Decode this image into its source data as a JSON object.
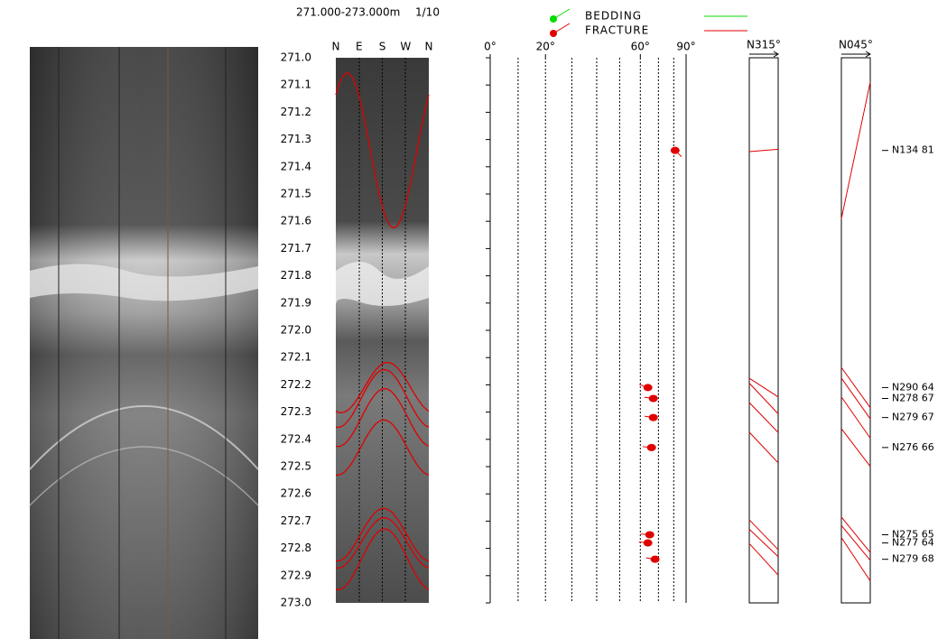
{
  "header": {
    "range": "271.000-273.000m",
    "scale": "1/10"
  },
  "legend": [
    {
      "label": "BEDDING",
      "color": "#00dd00"
    },
    {
      "label": "FRACTURE",
      "color": "#e00000"
    }
  ],
  "compass": [
    "N",
    "E",
    "S",
    "W",
    "N"
  ],
  "depth_axis": {
    "lim": [
      271.0,
      273.0
    ],
    "ticks": [
      {
        "value": 271.0,
        "label": "271.0"
      },
      {
        "value": 271.1,
        "label": "271.1"
      },
      {
        "value": 271.2,
        "label": "271.2"
      },
      {
        "value": 271.3,
        "label": "271.3"
      },
      {
        "value": 271.4,
        "label": "271.4"
      },
      {
        "value": 271.5,
        "label": "271.5"
      },
      {
        "value": 271.6,
        "label": "271.6"
      },
      {
        "value": 271.7,
        "label": "271.7"
      },
      {
        "value": 271.8,
        "label": "271.8"
      },
      {
        "value": 271.9,
        "label": "271.9"
      },
      {
        "value": 272.0,
        "label": "272.0"
      },
      {
        "value": 272.1,
        "label": "272.1"
      },
      {
        "value": 272.2,
        "label": "272.2"
      },
      {
        "value": 272.3,
        "label": "272.3"
      },
      {
        "value": 272.4,
        "label": "272.4"
      },
      {
        "value": 272.5,
        "label": "272.5"
      },
      {
        "value": 272.6,
        "label": "272.6"
      },
      {
        "value": 272.7,
        "label": "272.7"
      },
      {
        "value": 272.8,
        "label": "272.8"
      },
      {
        "value": 272.9,
        "label": "272.9"
      },
      {
        "value": 273.0,
        "label": "273.0"
      }
    ]
  },
  "dip_axis": {
    "lim": [
      0,
      90
    ],
    "ticks": [
      {
        "value": 0,
        "label": "0°"
      },
      {
        "value": 20,
        "label": "20°"
      },
      {
        "value": 60,
        "label": "60°"
      },
      {
        "value": 90,
        "label": "90°"
      }
    ],
    "grid": [
      10,
      20,
      30,
      40,
      50,
      60,
      70,
      80
    ]
  },
  "projections": [
    {
      "label": "N315°",
      "azimuth": 315
    },
    {
      "label": "N045°",
      "azimuth": 45
    }
  ],
  "fractures": [
    {
      "depth": 271.34,
      "azimuth": 134,
      "dip": 81,
      "label": "N134 81"
    },
    {
      "depth": 272.21,
      "azimuth": 290,
      "dip": 64,
      "label": "N290 64"
    },
    {
      "depth": 272.25,
      "azimuth": 278,
      "dip": 67,
      "label": "N278 67"
    },
    {
      "depth": 272.32,
      "azimuth": 279,
      "dip": 67,
      "label": "N279 67"
    },
    {
      "depth": 272.43,
      "azimuth": 276,
      "dip": 66,
      "label": "N276 66"
    },
    {
      "depth": 272.75,
      "azimuth": 275,
      "dip": 65,
      "label": "N275 65"
    },
    {
      "depth": 272.78,
      "azimuth": 277,
      "dip": 64,
      "label": "N277 64"
    },
    {
      "depth": 272.84,
      "azimuth": 279,
      "dip": 68,
      "label": "N279 68"
    }
  ]
}
